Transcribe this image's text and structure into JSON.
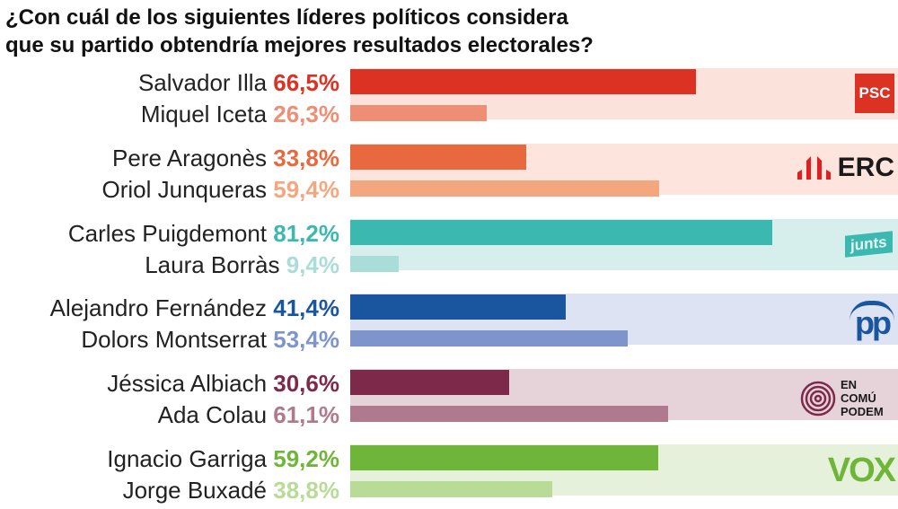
{
  "title_line1": "¿Con cuál de los siguientes líderes políticos considera",
  "title_line2": "que su partido obtendría mejores resultados electorales?",
  "chart_data": {
    "type": "bar",
    "orientation": "horizontal",
    "unit": "%",
    "xlim": [
      0,
      100
    ],
    "groups": [
      {
        "party": "PSC",
        "logo_text": "PSC",
        "color": "#dc3223",
        "light": "#ee8e74",
        "bg": "#fbe3dc",
        "leaders": [
          {
            "name": "Salvador Illa",
            "value": 66.5,
            "label": "66,5%"
          },
          {
            "name": "Miquel Iceta",
            "value": 26.3,
            "label": "26,3%"
          }
        ]
      },
      {
        "party": "ERC",
        "logo_text": "ERC",
        "color": "#e8693e",
        "light": "#f4a77f",
        "bg": "#fde5dd",
        "leaders": [
          {
            "name": "Pere Aragonès",
            "value": 33.8,
            "label": "33,8%"
          },
          {
            "name": "Oriol Junqueras",
            "value": 59.4,
            "label": "59,4%"
          }
        ]
      },
      {
        "party": "Junts",
        "logo_text": "junts",
        "color": "#3bb8b0",
        "light": "#a9ddd8",
        "bg": "#d6efec",
        "leaders": [
          {
            "name": "Carles Puigdemont",
            "value": 81.2,
            "label": "81,2%"
          },
          {
            "name": "Laura Borràs",
            "value": 9.4,
            "label": "9,4%"
          }
        ]
      },
      {
        "party": "PP",
        "logo_text": "pp",
        "color": "#1a55a0",
        "light": "#7e95cc",
        "bg": "#dde3f3",
        "leaders": [
          {
            "name": "Alejandro Fernández",
            "value": 41.4,
            "label": "41,4%"
          },
          {
            "name": "Dolors Montserrat",
            "value": 53.4,
            "label": "53,4%"
          }
        ]
      },
      {
        "party": "En Comú Podem",
        "logo_text": "EN COMÚ PODEM",
        "color": "#7d2a4a",
        "light": "#b07a8e",
        "bg": "#e6d3da",
        "leaders": [
          {
            "name": "Jéssica Albiach",
            "value": 30.6,
            "label": "30,6%"
          },
          {
            "name": "Ada Colau",
            "value": 61.1,
            "label": "61,1%"
          }
        ]
      },
      {
        "party": "Vox",
        "logo_text": "VOX",
        "color": "#6fb53a",
        "light": "#b8db97",
        "bg": "#e5f1da",
        "leaders": [
          {
            "name": "Ignacio Garriga",
            "value": 59.2,
            "label": "59,2%"
          },
          {
            "name": "Jorge Buxadé",
            "value": 38.8,
            "label": "38,8%"
          }
        ]
      }
    ]
  }
}
